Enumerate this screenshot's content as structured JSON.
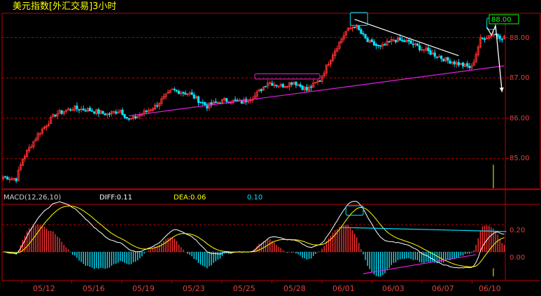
{
  "title": "美元指数[外汇交易]3小时",
  "colors": {
    "background": "#000000",
    "frame": "#c00000",
    "up": "#ff3030",
    "down": "#00e5ff",
    "axis_text": "#e04040",
    "title_text": "#ffff00",
    "macd_diff": "#ffffff",
    "macd_dea": "#ffff00",
    "trendline": "#e020e0",
    "annotation": "#ffffff",
    "highlight_box": "#00e5ff",
    "last_price": "#00ff00"
  },
  "price_panel": {
    "last_price_label": "88.00",
    "ticks": [
      "88.00",
      "87.00",
      "86.00",
      "85.00"
    ]
  },
  "macd_panel": {
    "label": "MACD(12,26,10)",
    "diff_label": "DIFF:0.11",
    "dea_label": "DEA:0.06",
    "value_label": "0.10",
    "ticks": [
      "0.20",
      "0.00"
    ]
  },
  "x_axis": {
    "labels": [
      "05/12",
      "05/16",
      "05/19",
      "05/23",
      "05/25",
      "05/28",
      "06/01",
      "06/03",
      "06/07",
      "06/10"
    ]
  },
  "chart_data": {
    "type": "candlestick",
    "title": "美元指数[外汇交易]3小时",
    "x_tick_labels": [
      "05/12",
      "05/16",
      "05/19",
      "05/23",
      "05/25",
      "05/28",
      "06/01",
      "06/03",
      "06/07",
      "06/10"
    ],
    "y_ticks": [
      85.0,
      86.0,
      87.0,
      88.0
    ],
    "ylim": [
      84.25,
      88.6
    ],
    "last_price": 88.0,
    "close_path": [
      [
        0,
        84.55
      ],
      [
        6,
        84.5
      ],
      [
        9,
        85.0
      ],
      [
        16,
        85.6
      ],
      [
        24,
        86.1
      ],
      [
        32,
        86.25
      ],
      [
        40,
        86.2
      ],
      [
        48,
        86.1
      ],
      [
        54,
        86.2
      ],
      [
        58,
        85.95
      ],
      [
        62,
        86.05
      ],
      [
        70,
        86.3
      ],
      [
        78,
        86.7
      ],
      [
        86,
        86.6
      ],
      [
        94,
        86.3
      ],
      [
        102,
        86.45
      ],
      [
        110,
        86.4
      ],
      [
        116,
        86.55
      ],
      [
        122,
        86.9
      ],
      [
        128,
        86.8
      ],
      [
        134,
        86.9
      ],
      [
        140,
        86.7
      ],
      [
        146,
        86.95
      ],
      [
        152,
        87.6
      ],
      [
        158,
        88.15
      ],
      [
        162,
        88.3
      ],
      [
        168,
        87.9
      ],
      [
        174,
        87.75
      ],
      [
        180,
        87.95
      ],
      [
        186,
        87.9
      ],
      [
        192,
        87.75
      ],
      [
        198,
        87.6
      ],
      [
        204,
        87.45
      ],
      [
        210,
        87.35
      ],
      [
        216,
        87.25
      ],
      [
        220,
        87.95
      ],
      [
        226,
        88.1
      ],
      [
        230,
        88.0
      ]
    ],
    "macd": {
      "diff_last": 0.11,
      "dea_last": 0.06,
      "value_label": 0.1,
      "ylim": [
        -0.18,
        0.35
      ],
      "y_ticks": [
        0.0,
        0.2
      ]
    },
    "annotations": [
      {
        "type": "trendline",
        "color": "magenta",
        "from": [
          58,
          86.06
        ],
        "to": [
          231,
          87.3
        ]
      },
      {
        "type": "trendline",
        "color": "white",
        "from": [
          162,
          88.45
        ],
        "to": [
          210,
          87.55
        ]
      },
      {
        "type": "box",
        "color": "magenta",
        "x": [
          116,
          146
        ],
        "y": [
          86.97,
          87.1
        ]
      },
      {
        "type": "box",
        "color": "cyan",
        "x": [
          160,
          168
        ],
        "y": [
          88.3,
          88.62
        ]
      },
      {
        "type": "box",
        "color": "cyan",
        "x": [
          223,
          227
        ],
        "y": [
          88.2,
          88.48
        ]
      },
      {
        "type": "arrow",
        "color": "white",
        "from": [
          227,
          88.3
        ],
        "to": [
          230,
          86.65
        ]
      },
      {
        "type": "box",
        "color": "cyan",
        "panel": "macd",
        "x": [
          158,
          166
        ],
        "y": [
          0.27,
          0.34
        ]
      },
      {
        "type": "trendline",
        "color": "cyan",
        "panel": "macd",
        "from": [
          156,
          0.18
        ],
        "to": [
          232,
          0.15
        ]
      },
      {
        "type": "trendline",
        "color": "magenta",
        "panel": "macd",
        "from": [
          166,
          -0.16
        ],
        "to": [
          218,
          -0.02
        ]
      }
    ]
  }
}
